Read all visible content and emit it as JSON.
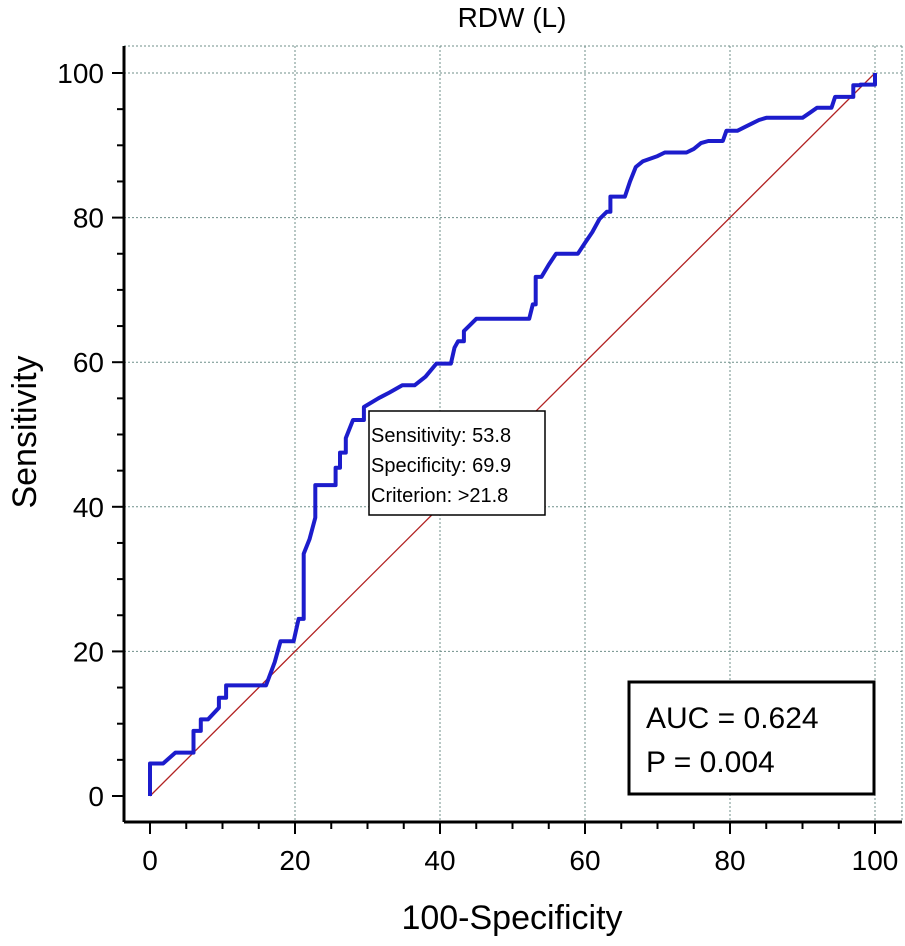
{
  "chart_data": {
    "type": "line",
    "title": "RDW (L)",
    "xlabel": "100-Specificity",
    "ylabel": "Sensitivity",
    "xlim": [
      0,
      100
    ],
    "ylim": [
      0,
      100
    ],
    "x_ticks": [
      0,
      20,
      40,
      60,
      80,
      100
    ],
    "y_ticks": [
      0,
      20,
      40,
      60,
      80,
      100
    ],
    "grid": true,
    "series": [
      {
        "color": "#1c1ccc",
        "points": [
          [
            0,
            0
          ],
          [
            0,
            4.5
          ],
          [
            1.8,
            4.5
          ],
          [
            3.5,
            6
          ],
          [
            6,
            6
          ],
          [
            6,
            9
          ],
          [
            7,
            9
          ],
          [
            7,
            10.6
          ],
          [
            8,
            10.6
          ],
          [
            9.5,
            12.2
          ],
          [
            9.5,
            13.6
          ],
          [
            10.5,
            13.6
          ],
          [
            10.5,
            15.3
          ],
          [
            16,
            15.3
          ],
          [
            17.2,
            18.5
          ],
          [
            18,
            21.4
          ],
          [
            19.8,
            21.4
          ],
          [
            20.5,
            24.5
          ],
          [
            21.2,
            24.5
          ],
          [
            21.2,
            33.5
          ],
          [
            22,
            35.5
          ],
          [
            22.8,
            38.5
          ],
          [
            22.8,
            43
          ],
          [
            25.6,
            43
          ],
          [
            25.6,
            45.4
          ],
          [
            26.2,
            45.4
          ],
          [
            26.2,
            47.5
          ],
          [
            27,
            47.5
          ],
          [
            27,
            49.5
          ],
          [
            28,
            52
          ],
          [
            29.5,
            52
          ],
          [
            29.5,
            53.8
          ],
          [
            31.5,
            55
          ],
          [
            33,
            55.8
          ],
          [
            34.8,
            56.8
          ],
          [
            36.5,
            56.8
          ],
          [
            38,
            58
          ],
          [
            39.5,
            59.8
          ],
          [
            41.5,
            59.8
          ],
          [
            42,
            62
          ],
          [
            42.5,
            62.9
          ],
          [
            43.3,
            62.9
          ],
          [
            43.3,
            64.3
          ],
          [
            44,
            65
          ],
          [
            45,
            66
          ],
          [
            52.3,
            66
          ],
          [
            52.8,
            68
          ],
          [
            53.2,
            68
          ],
          [
            53.2,
            71.8
          ],
          [
            54,
            71.8
          ],
          [
            55,
            73.5
          ],
          [
            56,
            75
          ],
          [
            59,
            75
          ],
          [
            60,
            76.5
          ],
          [
            61,
            78
          ],
          [
            62,
            79.8
          ],
          [
            63,
            80.8
          ],
          [
            63.5,
            80.8
          ],
          [
            63.5,
            82.9
          ],
          [
            65.5,
            82.9
          ],
          [
            66.2,
            85
          ],
          [
            67,
            87
          ],
          [
            68,
            87.8
          ],
          [
            70,
            88.5
          ],
          [
            71,
            89
          ],
          [
            74,
            89
          ],
          [
            75,
            89.5
          ],
          [
            76,
            90.3
          ],
          [
            77,
            90.6
          ],
          [
            79,
            90.6
          ],
          [
            79.5,
            92
          ],
          [
            81,
            92
          ],
          [
            82,
            92.5
          ],
          [
            83,
            93
          ],
          [
            84,
            93.5
          ],
          [
            85,
            93.8
          ],
          [
            90,
            93.8
          ],
          [
            91,
            94.5
          ],
          [
            92,
            95.2
          ],
          [
            94,
            95.2
          ],
          [
            94.5,
            96.7
          ],
          [
            97,
            96.7
          ],
          [
            97,
            98.3
          ],
          [
            98,
            98.3
          ],
          [
            98,
            98.4
          ],
          [
            100,
            98.4
          ],
          [
            100,
            100
          ]
        ]
      }
    ],
    "reference_line": {
      "color": "#b22222",
      "points": [
        [
          0,
          0
        ],
        [
          100,
          100
        ]
      ]
    },
    "annotation": {
      "lines": [
        "Sensitivity: 53.8",
        "Specificity: 69.9",
        "Criterion: >21.8"
      ],
      "point": [
        30.1,
        53.8
      ]
    },
    "stats": {
      "auc": "AUC = 0.624",
      "p": "P = 0.004"
    }
  }
}
